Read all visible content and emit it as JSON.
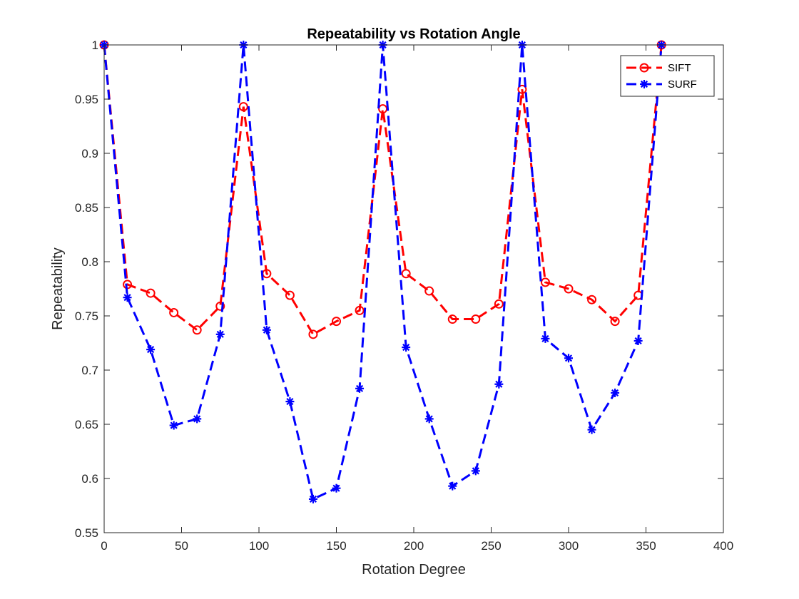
{
  "chart_data": {
    "type": "line",
    "title": "Repeatability vs Rotation Angle",
    "xlabel": "Rotation Degree",
    "ylabel": "Repeatability",
    "xlim": [
      0,
      400
    ],
    "ylim": [
      0.55,
      1
    ],
    "xticks": [
      0,
      50,
      100,
      150,
      200,
      250,
      300,
      350,
      400
    ],
    "yticks": [
      0.55,
      0.6,
      0.65,
      0.7,
      0.75,
      0.8,
      0.85,
      0.9,
      0.95,
      1
    ],
    "ytick_labels": [
      "0.55",
      "0.6",
      "0.65",
      "0.7",
      "0.75",
      "0.8",
      "0.85",
      "0.9",
      "0.95",
      "1"
    ],
    "grid": false,
    "legend_location": "top-right",
    "x": [
      0,
      15,
      30,
      45,
      60,
      75,
      90,
      105,
      120,
      135,
      150,
      165,
      180,
      195,
      210,
      225,
      240,
      255,
      270,
      285,
      300,
      315,
      330,
      345,
      360
    ],
    "series": [
      {
        "name": "SIFT",
        "color": "#ff0000",
        "marker": "circle",
        "line_style": "dashed",
        "values": [
          1.0,
          0.779,
          0.771,
          0.753,
          0.737,
          0.759,
          0.943,
          0.789,
          0.769,
          0.733,
          0.745,
          0.755,
          0.941,
          0.789,
          0.773,
          0.747,
          0.747,
          0.761,
          0.959,
          0.781,
          0.775,
          0.765,
          0.745,
          0.769,
          1.0
        ]
      },
      {
        "name": "SURF",
        "color": "#0000ff",
        "marker": "asterisk",
        "line_style": "dashed",
        "values": [
          1.0,
          0.767,
          0.719,
          0.649,
          0.655,
          0.733,
          1.0,
          0.737,
          0.671,
          0.581,
          0.591,
          0.683,
          1.0,
          0.721,
          0.655,
          0.593,
          0.607,
          0.687,
          1.0,
          0.729,
          0.711,
          0.645,
          0.679,
          0.727,
          1.0
        ]
      }
    ]
  }
}
